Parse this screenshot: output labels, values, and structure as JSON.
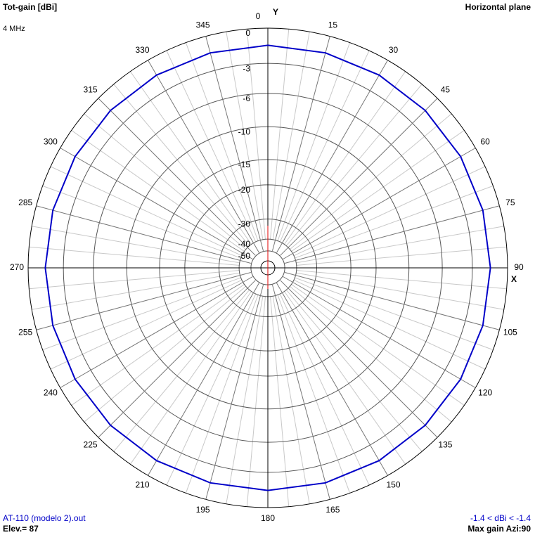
{
  "chart_data": {
    "type": "polar",
    "title": "Tot-gain [dBi]",
    "subtitle": "Horizontal plane",
    "frequency": "4 MHz",
    "y_axis_label": "Y",
    "x_axis_label": "X",
    "file_name": "AT-110 (modelo 2).out",
    "elevation": "Elev.= 87",
    "gain_range": "-1.4 < dBi < -1.4",
    "max_gain": "Max gain Azi:90",
    "rlim": [
      -50,
      0
    ],
    "rticks": [
      0,
      -3,
      -6,
      -10,
      -15,
      -20,
      -30,
      -40,
      -50
    ],
    "thetaticks": [
      0,
      15,
      30,
      45,
      60,
      75,
      90,
      105,
      120,
      135,
      150,
      165,
      180,
      195,
      210,
      225,
      240,
      255,
      270,
      285,
      300,
      315,
      330,
      345
    ],
    "series": [
      {
        "color": "#0000c8",
        "theta": [
          0,
          15,
          30,
          45,
          60,
          75,
          90,
          105,
          120,
          135,
          150,
          165,
          180,
          195,
          210,
          225,
          240,
          255,
          270,
          285,
          300,
          315,
          330,
          345
        ],
        "values": [
          -1.4,
          -1.4,
          -1.4,
          -1.4,
          -1.4,
          -1.4,
          -1.4,
          -1.4,
          -1.4,
          -1.4,
          -1.4,
          -1.4,
          -1.4,
          -1.4,
          -1.4,
          -1.4,
          -1.4,
          -1.4,
          -1.4,
          -1.4,
          -1.4,
          -1.4,
          -1.4,
          -1.4
        ]
      }
    ]
  }
}
